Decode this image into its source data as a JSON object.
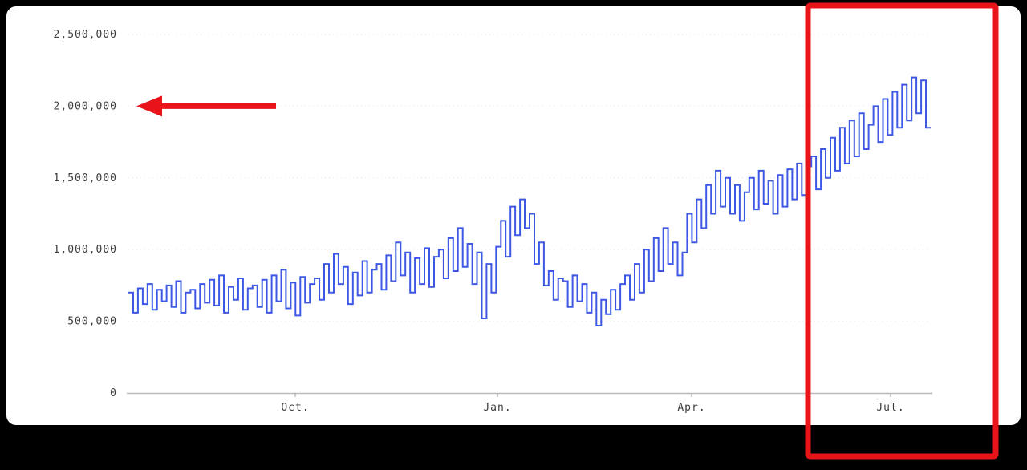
{
  "chart_data": {
    "type": "line",
    "style": "step",
    "title": "",
    "xlabel": "",
    "ylabel": "",
    "x_tick_labels": [
      "Oct.",
      "Jan.",
      "Apr.",
      "Jul."
    ],
    "x_tick_positions": [
      0.208,
      0.46,
      0.702,
      0.95
    ],
    "y_tick_labels": [
      "0",
      "500,000",
      "1,000,000",
      "1,500,000",
      "2,000,000",
      "2,500,000"
    ],
    "y_ticks": [
      0,
      500000,
      1000000,
      1500000,
      2000000,
      2500000
    ],
    "ylim": [
      0,
      2500000
    ],
    "grid": true,
    "legend": false,
    "line_color": "#3c58e5",
    "grid_color": "#e6e6e6",
    "axis_color": "#bbbbbb",
    "values": [
      700000,
      560000,
      730000,
      620000,
      760000,
      580000,
      720000,
      640000,
      750000,
      600000,
      780000,
      560000,
      700000,
      720000,
      590000,
      760000,
      630000,
      790000,
      610000,
      820000,
      560000,
      740000,
      650000,
      800000,
      580000,
      730000,
      750000,
      600000,
      790000,
      560000,
      820000,
      640000,
      860000,
      590000,
      770000,
      540000,
      810000,
      630000,
      760000,
      800000,
      650000,
      900000,
      700000,
      970000,
      760000,
      880000,
      620000,
      840000,
      680000,
      920000,
      700000,
      860000,
      900000,
      720000,
      960000,
      780000,
      1050000,
      820000,
      980000,
      700000,
      940000,
      760000,
      1010000,
      740000,
      950000,
      1000000,
      800000,
      1080000,
      850000,
      1150000,
      880000,
      1040000,
      760000,
      980000,
      520000,
      900000,
      700000,
      1020000,
      1200000,
      950000,
      1300000,
      1100000,
      1350000,
      1150000,
      1250000,
      900000,
      1050000,
      750000,
      850000,
      650000,
      800000,
      780000,
      600000,
      820000,
      640000,
      760000,
      560000,
      700000,
      470000,
      650000,
      550000,
      720000,
      580000,
      760000,
      820000,
      650000,
      900000,
      700000,
      1000000,
      780000,
      1080000,
      850000,
      1150000,
      900000,
      1050000,
      820000,
      980000,
      1250000,
      1050000,
      1350000,
      1150000,
      1450000,
      1250000,
      1550000,
      1300000,
      1500000,
      1250000,
      1450000,
      1200000,
      1400000,
      1500000,
      1280000,
      1550000,
      1320000,
      1480000,
      1250000,
      1520000,
      1300000,
      1560000,
      1350000,
      1600000,
      1380000,
      1580000,
      1650000,
      1420000,
      1700000,
      1500000,
      1780000,
      1550000,
      1850000,
      1600000,
      1900000,
      1650000,
      1950000,
      1700000,
      1870000,
      2000000,
      1750000,
      2050000,
      1800000,
      2100000,
      1850000,
      2150000,
      1900000,
      2200000,
      1950000,
      2180000,
      1850000
    ]
  },
  "annotations": {
    "color": "#e8141a",
    "arrow": {
      "points_at": "2,000,000 gridline / y-axis label",
      "direction": "left"
    },
    "highlight_box": {
      "region": "rightmost portion of chart around Jul.",
      "shape": "tall red rectangle outline"
    }
  }
}
